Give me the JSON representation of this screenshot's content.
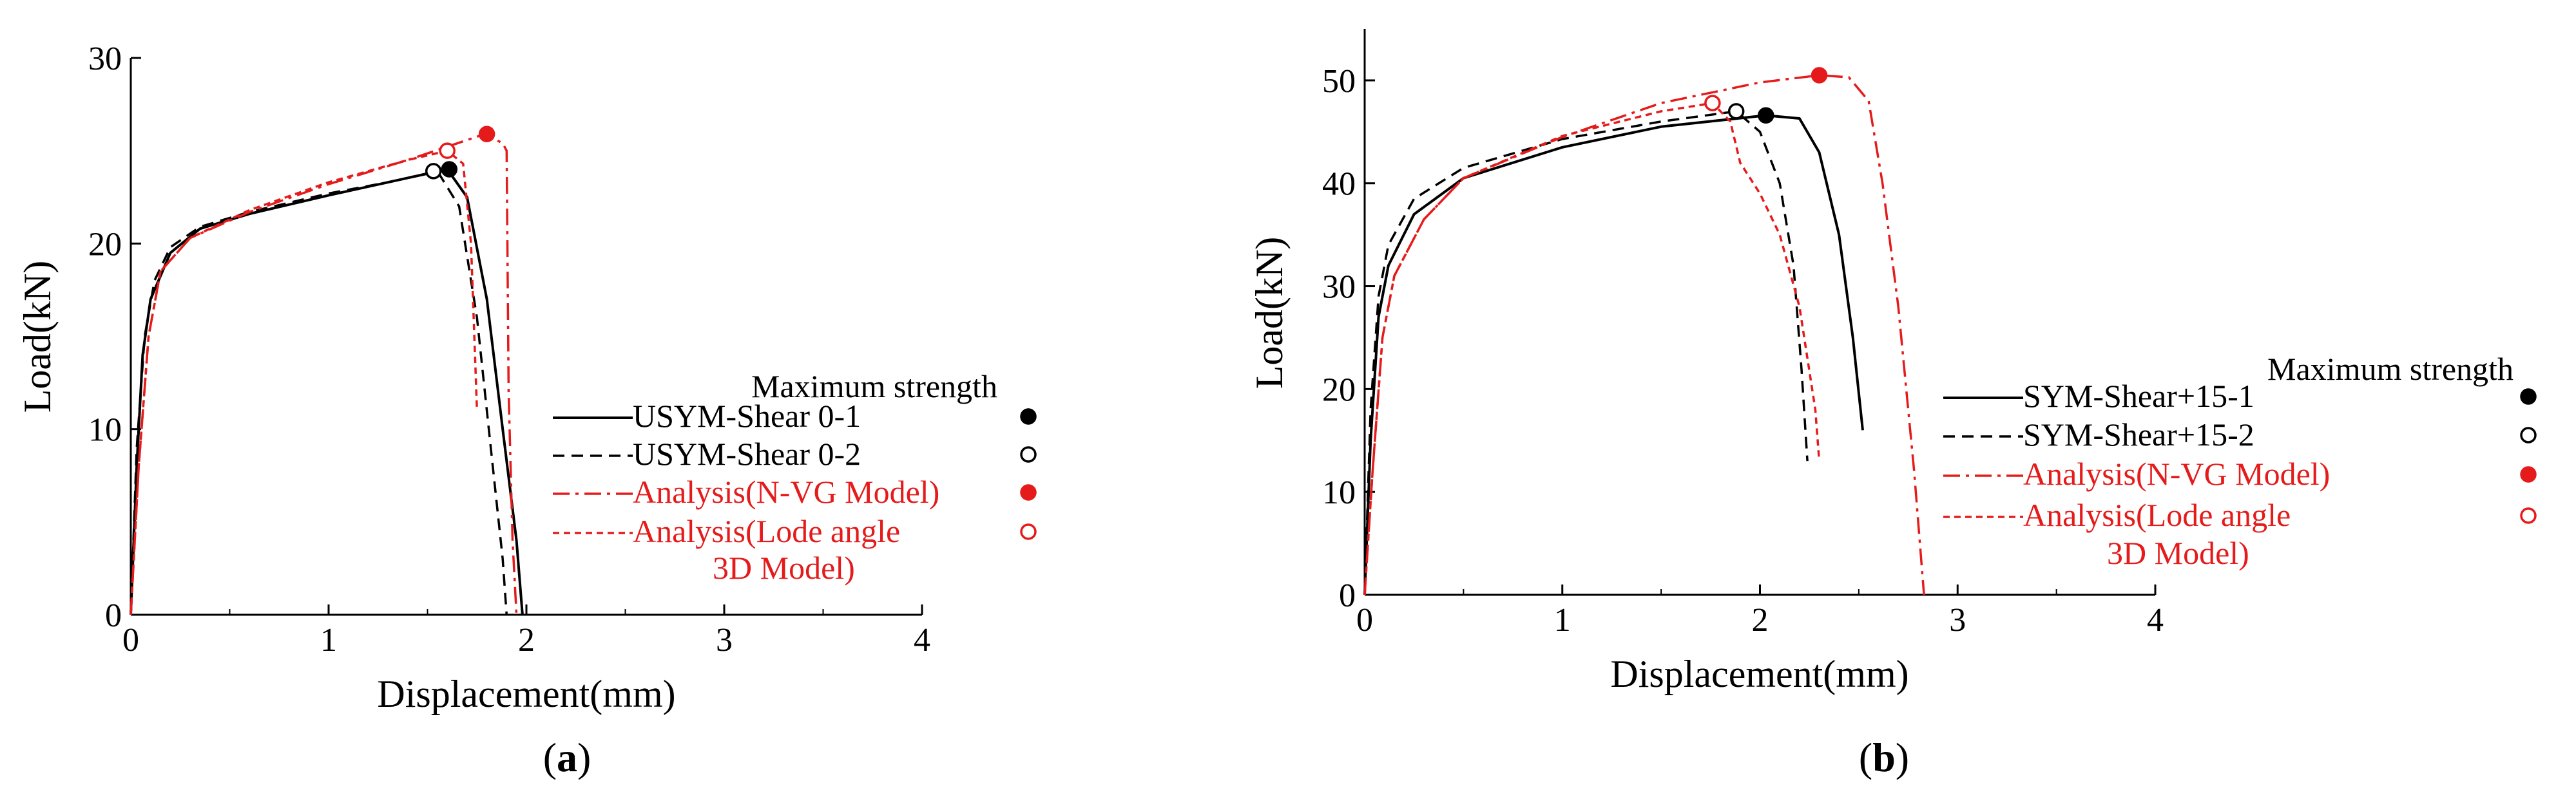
{
  "chart_data": [
    {
      "type": "line",
      "panel_label": "a",
      "xlabel": "Displacement(mm)",
      "ylabel": "Load(kN)",
      "xlim": [
        0,
        4
      ],
      "ylim": [
        0,
        30
      ],
      "xticks": [
        "0",
        "1",
        "2",
        "3",
        "4"
      ],
      "yticks": [
        "0",
        "10",
        "20",
        "30"
      ],
      "legend_title": "Maximum strength",
      "legend_position": "right",
      "series": [
        {
          "name": "USYM-Shear 0-1",
          "color": "#000000",
          "dash": "solid",
          "points": [
            [
              0,
              0
            ],
            [
              0.03,
              8
            ],
            [
              0.06,
              14
            ],
            [
              0.1,
              17
            ],
            [
              0.2,
              19.5
            ],
            [
              0.35,
              20.8
            ],
            [
              0.6,
              21.6
            ],
            [
              1.0,
              22.6
            ],
            [
              1.3,
              23.3
            ],
            [
              1.6,
              24.0
            ],
            [
              1.7,
              22.5
            ],
            [
              1.8,
              17
            ],
            [
              1.88,
              10
            ],
            [
              1.95,
              4
            ],
            [
              1.98,
              0
            ]
          ],
          "max_point": [
            1.61,
            24.0
          ],
          "marker": "filled-black"
        },
        {
          "name": "USYM-Shear 0-2",
          "color": "#000000",
          "dash": "dashed",
          "points": [
            [
              0,
              0
            ],
            [
              0.03,
              9
            ],
            [
              0.07,
              15
            ],
            [
              0.12,
              18
            ],
            [
              0.2,
              19.8
            ],
            [
              0.35,
              20.9
            ],
            [
              0.6,
              21.7
            ],
            [
              1.0,
              22.7
            ],
            [
              1.3,
              23.3
            ],
            [
              1.55,
              23.9
            ],
            [
              1.66,
              22
            ],
            [
              1.75,
              16
            ],
            [
              1.82,
              9
            ],
            [
              1.88,
              3
            ],
            [
              1.9,
              0
            ]
          ],
          "max_point": [
            1.53,
            23.9
          ],
          "marker": "open-black"
        },
        {
          "name": "Analysis(N-VG Model)",
          "color": "#e51b1b",
          "dash": "dashdot",
          "points": [
            [
              0,
              0
            ],
            [
              0.04,
              8
            ],
            [
              0.09,
              15
            ],
            [
              0.15,
              18.5
            ],
            [
              0.3,
              20.3
            ],
            [
              0.6,
              21.7
            ],
            [
              1.0,
              23.2
            ],
            [
              1.4,
              24.5
            ],
            [
              1.79,
              25.9
            ],
            [
              1.88,
              25.4
            ],
            [
              1.9,
              25.0
            ],
            [
              1.91,
              12
            ],
            [
              1.93,
              4
            ],
            [
              1.95,
              0
            ]
          ],
          "max_point": [
            1.8,
            25.9
          ],
          "marker": "filled-red"
        },
        {
          "name": "Analysis(Lode angle 3D Model)",
          "color": "#e51b1b",
          "dash": "dotted",
          "points": [
            [
              0,
              0
            ],
            [
              0.04,
              8
            ],
            [
              0.09,
              15
            ],
            [
              0.15,
              18.5
            ],
            [
              0.3,
              20.3
            ],
            [
              0.6,
              21.8
            ],
            [
              1.0,
              23.3
            ],
            [
              1.4,
              24.5
            ],
            [
              1.6,
              25.0
            ],
            [
              1.68,
              24.3
            ],
            [
              1.72,
              20
            ],
            [
              1.75,
              11
            ]
          ],
          "max_point": [
            1.6,
            25.0
          ],
          "marker": "open-red"
        }
      ]
    },
    {
      "type": "line",
      "panel_label": "b",
      "xlabel": "Displacement(mm)",
      "ylabel": "Load(kN)",
      "xlim": [
        0,
        4
      ],
      "ylim": [
        0,
        55
      ],
      "xticks": [
        "0",
        "1",
        "2",
        "3",
        "4"
      ],
      "yticks": [
        "0",
        "10",
        "20",
        "30",
        "40",
        "50"
      ],
      "legend_title": "Maximum strength",
      "legend_position": "right",
      "series": [
        {
          "name": "SYM-Shear+15-1",
          "color": "#000000",
          "dash": "solid",
          "points": [
            [
              0,
              0
            ],
            [
              0.03,
              15
            ],
            [
              0.07,
              27
            ],
            [
              0.12,
              32
            ],
            [
              0.25,
              37
            ],
            [
              0.5,
              40.5
            ],
            [
              1.0,
              43.5
            ],
            [
              1.5,
              45.5
            ],
            [
              2.03,
              46.6
            ],
            [
              2.2,
              46.3
            ],
            [
              2.3,
              43
            ],
            [
              2.4,
              35
            ],
            [
              2.47,
              25
            ],
            [
              2.52,
              16
            ]
          ],
          "max_point": [
            2.03,
            46.6
          ],
          "marker": "filled-black"
        },
        {
          "name": "SYM-Shear+15-2",
          "color": "#000000",
          "dash": "dashed",
          "points": [
            [
              0,
              0
            ],
            [
              0.03,
              18
            ],
            [
              0.07,
              29
            ],
            [
              0.12,
              34
            ],
            [
              0.25,
              38.5
            ],
            [
              0.5,
              41.5
            ],
            [
              1.0,
              44.3
            ],
            [
              1.5,
              46.0
            ],
            [
              1.88,
              47.0
            ],
            [
              2.0,
              45
            ],
            [
              2.1,
              40
            ],
            [
              2.17,
              32
            ],
            [
              2.21,
              22
            ],
            [
              2.24,
              13
            ]
          ],
          "max_point": [
            1.88,
            47.0
          ],
          "marker": "open-black"
        },
        {
          "name": "Analysis(N-VG Model)",
          "color": "#e51b1b",
          "dash": "dashdot",
          "points": [
            [
              0,
              0
            ],
            [
              0.04,
              12
            ],
            [
              0.09,
              25
            ],
            [
              0.15,
              31
            ],
            [
              0.3,
              36.5
            ],
            [
              0.5,
              40.5
            ],
            [
              1.0,
              44.5
            ],
            [
              1.5,
              47.8
            ],
            [
              2.0,
              49.8
            ],
            [
              2.3,
              50.5
            ],
            [
              2.45,
              50.3
            ],
            [
              2.55,
              48
            ],
            [
              2.62,
              40
            ],
            [
              2.7,
              28
            ],
            [
              2.78,
              12
            ],
            [
              2.83,
              0
            ]
          ],
          "max_point": [
            2.3,
            50.5
          ],
          "marker": "filled-red"
        },
        {
          "name": "Analysis(Lode angle 3D Model)",
          "color": "#e51b1b",
          "dash": "dotted",
          "points": [
            [
              0,
              0
            ],
            [
              0.04,
              12
            ],
            [
              0.09,
              25
            ],
            [
              0.15,
              31
            ],
            [
              0.3,
              36.5
            ],
            [
              0.5,
              40.5
            ],
            [
              1.0,
              44.6
            ],
            [
              1.5,
              47.0
            ],
            [
              1.76,
              47.8
            ],
            [
              1.85,
              46
            ],
            [
              1.9,
              42
            ],
            [
              2.0,
              39
            ],
            [
              2.1,
              35
            ],
            [
              2.2,
              28
            ],
            [
              2.28,
              18
            ],
            [
              2.3,
              13
            ]
          ],
          "max_point": [
            1.76,
            47.8
          ],
          "marker": "open-red"
        }
      ]
    }
  ]
}
